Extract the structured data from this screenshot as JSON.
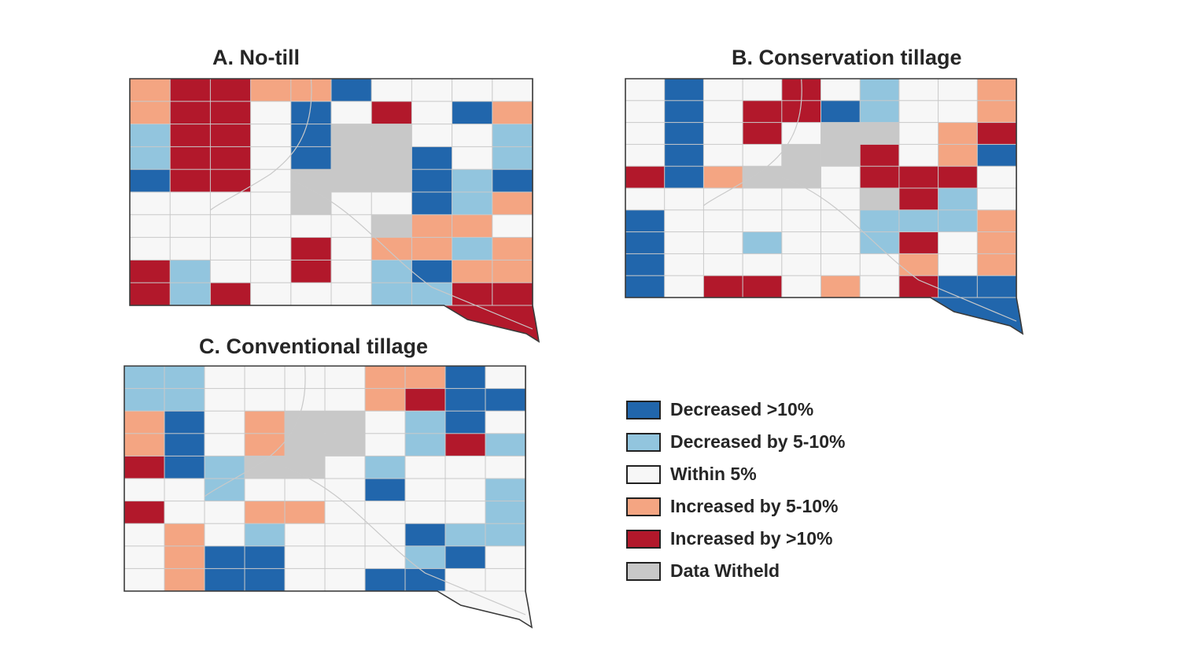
{
  "colors": {
    "dec10": "#2166ac",
    "dec5": "#92c5de",
    "within": "#f7f7f7",
    "inc5": "#f4a582",
    "inc10": "#b2182b",
    "withheld": "#c8c8c8"
  },
  "panels": [
    {
      "id": "A",
      "title": "A.    No-till",
      "counties": [
        [
          "inc5",
          "inc10",
          "inc10",
          "inc5",
          "inc5",
          "dec10",
          "within",
          "within",
          "within",
          "within"
        ],
        [
          "inc5",
          "inc10",
          "inc10",
          "within",
          "dec10",
          "within",
          "inc10",
          "within",
          "dec10",
          "inc5"
        ],
        [
          "dec5",
          "inc10",
          "inc10",
          "within",
          "dec10",
          "withheld",
          "withheld",
          "within",
          "within",
          "dec5"
        ],
        [
          "dec5",
          "inc10",
          "inc10",
          "within",
          "dec10",
          "withheld",
          "withheld",
          "dec10",
          "within",
          "dec5"
        ],
        [
          "dec10",
          "inc10",
          "inc10",
          "within",
          "withheld",
          "withheld",
          "withheld",
          "dec10",
          "dec5",
          "dec10"
        ],
        [
          "within",
          "within",
          "within",
          "within",
          "withheld",
          "within",
          "within",
          "dec10",
          "dec5",
          "inc5"
        ],
        [
          "within",
          "within",
          "within",
          "within",
          "within",
          "within",
          "withheld",
          "inc5",
          "inc5",
          "within"
        ],
        [
          "within",
          "within",
          "within",
          "within",
          "inc10",
          "within",
          "inc5",
          "inc5",
          "dec5",
          "inc5"
        ],
        [
          "inc10",
          "dec5",
          "within",
          "within",
          "inc10",
          "within",
          "dec5",
          "dec10",
          "inc5",
          "inc5"
        ],
        [
          "inc10",
          "dec5",
          "inc10",
          "within",
          "within",
          "within",
          "dec5",
          "dec5",
          "inc10",
          "inc10"
        ]
      ]
    },
    {
      "id": "B",
      "title": "B. Conservation tillage",
      "counties": [
        [
          "within",
          "dec10",
          "within",
          "within",
          "inc10",
          "within",
          "dec5",
          "within",
          "within",
          "inc5"
        ],
        [
          "within",
          "dec10",
          "within",
          "inc10",
          "inc10",
          "dec10",
          "dec5",
          "within",
          "within",
          "inc5"
        ],
        [
          "within",
          "dec10",
          "within",
          "inc10",
          "within",
          "withheld",
          "withheld",
          "within",
          "inc5",
          "inc10"
        ],
        [
          "within",
          "dec10",
          "within",
          "within",
          "withheld",
          "withheld",
          "inc10",
          "within",
          "inc5",
          "dec10"
        ],
        [
          "inc10",
          "dec10",
          "inc5",
          "withheld",
          "withheld",
          "within",
          "inc10",
          "inc10",
          "inc10",
          "within"
        ],
        [
          "within",
          "within",
          "within",
          "within",
          "within",
          "within",
          "withheld",
          "inc10",
          "dec5",
          "within"
        ],
        [
          "dec10",
          "within",
          "within",
          "within",
          "within",
          "within",
          "dec5",
          "dec5",
          "dec5",
          "inc5"
        ],
        [
          "dec10",
          "within",
          "within",
          "dec5",
          "within",
          "within",
          "dec5",
          "inc10",
          "within",
          "inc5"
        ],
        [
          "dec10",
          "within",
          "within",
          "within",
          "within",
          "within",
          "within",
          "inc5",
          "within",
          "inc5"
        ],
        [
          "dec10",
          "within",
          "inc10",
          "inc10",
          "within",
          "inc5",
          "within",
          "inc10",
          "dec10",
          "dec10"
        ]
      ]
    },
    {
      "id": "C",
      "title": "C. Conventional tillage",
      "counties": [
        [
          "dec5",
          "dec5",
          "within",
          "within",
          "within",
          "within",
          "inc5",
          "inc5",
          "dec10",
          "within"
        ],
        [
          "dec5",
          "dec5",
          "within",
          "within",
          "within",
          "within",
          "inc5",
          "inc10",
          "dec10",
          "dec10"
        ],
        [
          "inc5",
          "dec10",
          "within",
          "inc5",
          "withheld",
          "withheld",
          "within",
          "dec5",
          "dec10",
          "within"
        ],
        [
          "inc5",
          "dec10",
          "within",
          "inc5",
          "withheld",
          "withheld",
          "within",
          "dec5",
          "inc10",
          "dec5"
        ],
        [
          "inc10",
          "dec10",
          "dec5",
          "withheld",
          "withheld",
          "within",
          "dec5",
          "within",
          "within",
          "within"
        ],
        [
          "within",
          "within",
          "dec5",
          "within",
          "within",
          "within",
          "dec10",
          "within",
          "within",
          "dec5"
        ],
        [
          "inc10",
          "within",
          "within",
          "inc5",
          "inc5",
          "within",
          "within",
          "within",
          "within",
          "dec5"
        ],
        [
          "within",
          "inc5",
          "within",
          "dec5",
          "within",
          "within",
          "within",
          "dec10",
          "dec5",
          "dec5"
        ],
        [
          "within",
          "inc5",
          "dec10",
          "dec10",
          "within",
          "within",
          "within",
          "dec5",
          "dec10",
          "within"
        ],
        [
          "within",
          "inc5",
          "dec10",
          "dec10",
          "within",
          "within",
          "dec10",
          "dec10",
          "within",
          "within"
        ]
      ]
    }
  ],
  "legend": [
    {
      "key": "dec10",
      "label": "Decreased >10%"
    },
    {
      "key": "dec5",
      "label": "Decreased by 5-10%"
    },
    {
      "key": "within",
      "label": "Within 5%"
    },
    {
      "key": "inc5",
      "label": "Increased by 5-10%"
    },
    {
      "key": "inc10",
      "label": "Increased by >10%"
    },
    {
      "key": "withheld",
      "label": "Data Witheld"
    }
  ]
}
